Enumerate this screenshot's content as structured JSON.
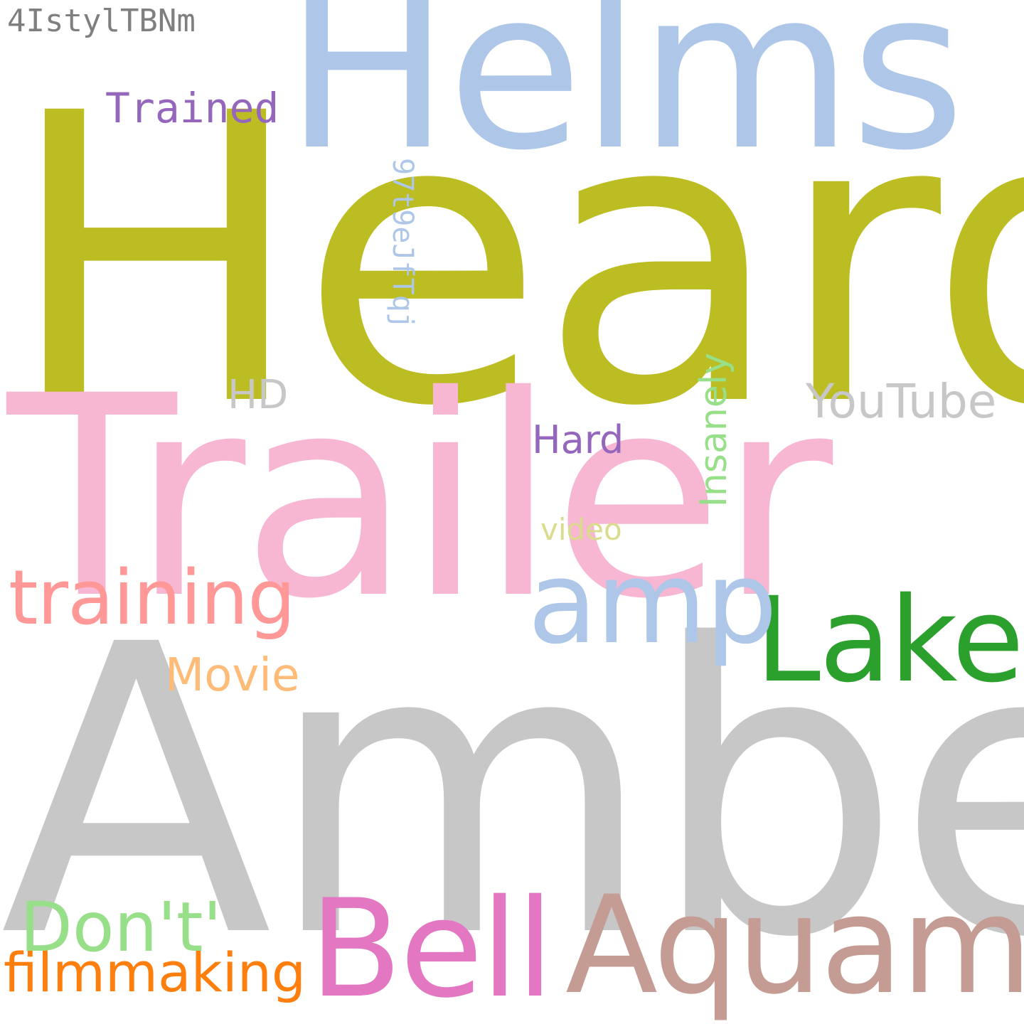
{
  "words": {
    "heard": {
      "text": "Heard",
      "color": "#bcbd22"
    },
    "helms": {
      "text": "Helms",
      "color": "#aec7e8"
    },
    "trailer": {
      "text": "Trailer",
      "color": "#f7b6d2"
    },
    "amber": {
      "text": "Amber",
      "color": "#c7c7c7"
    },
    "aquaman": {
      "text": "Aquaman",
      "color": "#c49c94"
    },
    "bell": {
      "text": "Bell",
      "color": "#e377c2"
    },
    "lake": {
      "text": "Lake",
      "color": "#2ca02c"
    },
    "amp": {
      "text": "amp",
      "color": "#aec7e8"
    },
    "training": {
      "text": "training",
      "color": "#ff9896"
    },
    "filmmaking": {
      "text": "filmmaking",
      "color": "#ff7f0e"
    },
    "dont": {
      "text": "Don't'",
      "color": "#98df8a"
    },
    "movie": {
      "text": "Movie",
      "color": "#ffbb78"
    },
    "youtube": {
      "text": "YouTube",
      "color": "#c7c7c7"
    },
    "hd": {
      "text": "HD",
      "color": "#c7c7c7"
    },
    "hard": {
      "text": "Hard",
      "color": "#9467bd"
    },
    "video": {
      "text": "video",
      "color": "#dbdb8d"
    },
    "trained": {
      "text": "Trained",
      "color": "#9467bd"
    },
    "id1": {
      "text": "4IstylTBNm",
      "color": "#7f7f7f"
    },
    "id2": {
      "text": "97t9eJfTqj",
      "color": "#aec7e8"
    },
    "insanely": {
      "text": "Insanely",
      "color": "#98df8a"
    }
  }
}
